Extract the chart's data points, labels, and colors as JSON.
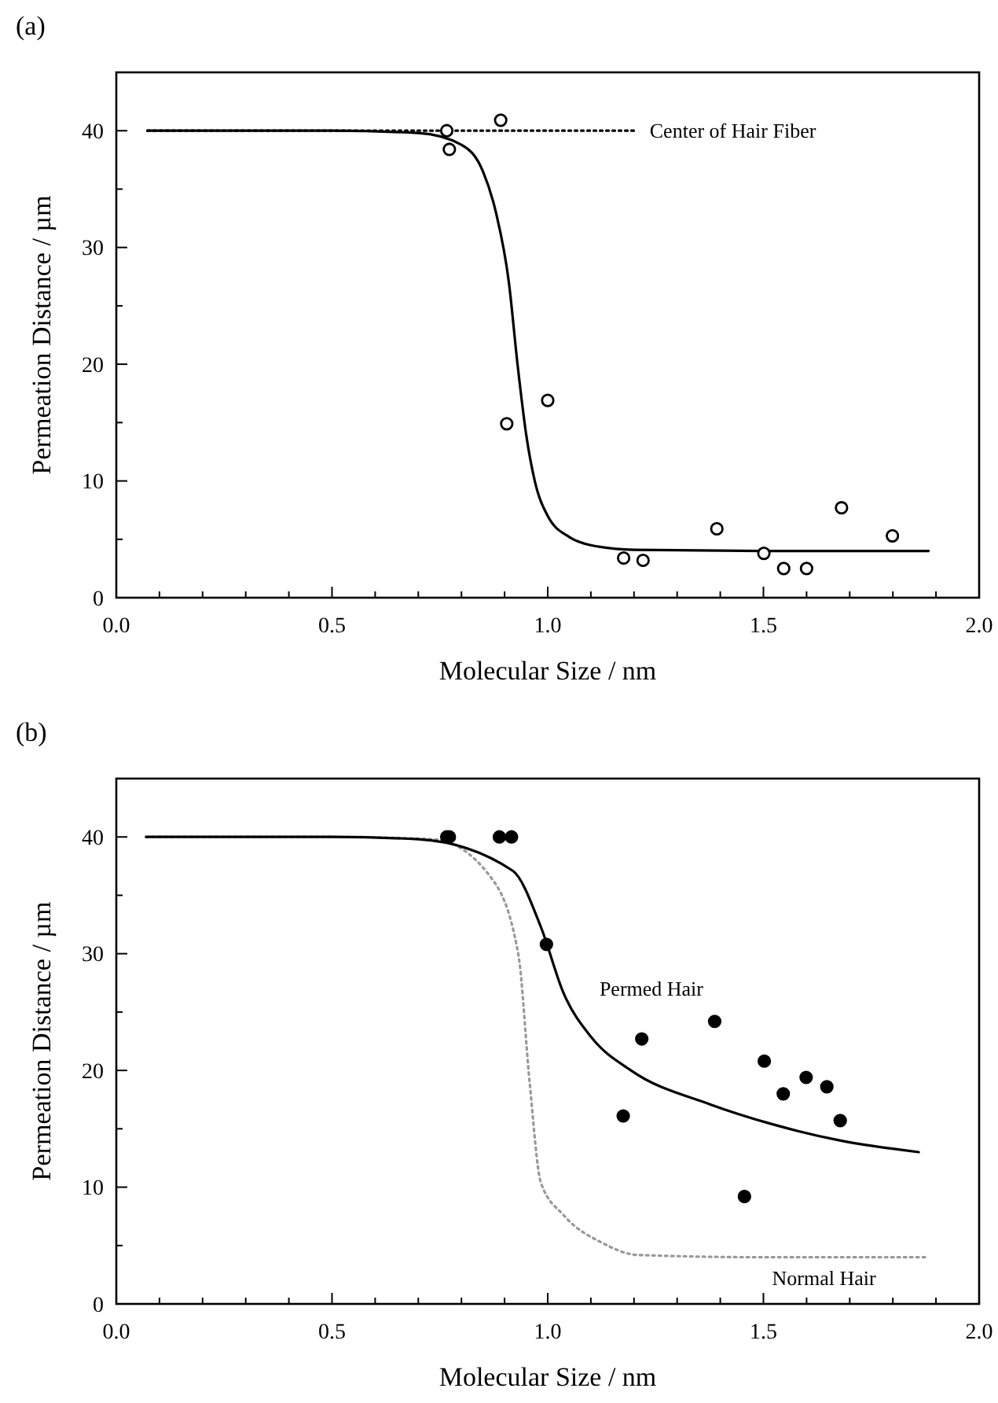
{
  "chart_data": [
    {
      "type": "scatter",
      "title": "(a)",
      "xlabel": "Molecular Size / nm",
      "ylabel": "Permeation Distance / µm",
      "xlim": [
        0,
        2
      ],
      "ylim": [
        0,
        45
      ],
      "xticks": [
        {
          "value": 0,
          "label": "0.0"
        },
        {
          "value": 0.1,
          "label": null
        },
        {
          "value": 0.2,
          "label": null
        },
        {
          "value": 0.3,
          "label": null
        },
        {
          "value": 0.4,
          "label": null
        },
        {
          "value": 0.5,
          "label": "0.5"
        },
        {
          "value": 0.6,
          "label": null
        },
        {
          "value": 0.7,
          "label": null
        },
        {
          "value": 0.8,
          "label": null
        },
        {
          "value": 0.9,
          "label": null
        },
        {
          "value": 1,
          "label": "1.0"
        },
        {
          "value": 1.1,
          "label": null
        },
        {
          "value": 1.2,
          "label": null
        },
        {
          "value": 1.3,
          "label": null
        },
        {
          "value": 1.4,
          "label": null
        },
        {
          "value": 1.5,
          "label": "1.5"
        },
        {
          "value": 1.6,
          "label": null
        },
        {
          "value": 1.7,
          "label": null
        },
        {
          "value": 1.8,
          "label": null
        },
        {
          "value": 1.9,
          "label": null
        },
        {
          "value": 2,
          "label": "2.0"
        }
      ],
      "yticks": [
        0,
        {
          "value": 5,
          "label": null
        },
        10,
        {
          "value": 15,
          "label": null
        },
        20,
        {
          "value": 25,
          "label": null
        },
        30,
        {
          "value": 35,
          "label": null
        },
        40
      ],
      "grid": false,
      "legend": false,
      "series": [
        {
          "type": "line",
          "name": "Center of Hair Fiber",
          "color": "#000000",
          "line_style": "dotted",
          "marker": "none",
          "x": [
            0.072,
            1.2
          ],
          "values": [
            40,
            40
          ]
        },
        {
          "type": "line",
          "color": "#000000",
          "line_style": "solid",
          "marker": "none",
          "x": [
            0.072,
            0.5,
            0.7,
            0.8,
            0.85,
            0.88,
            0.91,
            0.93,
            0.95,
            0.97,
            1.0,
            1.05,
            1.1,
            1.2,
            1.5,
            1.883
          ],
          "values": [
            40,
            40,
            39.8,
            38.8,
            36.5,
            33,
            27,
            20,
            14,
            10,
            7,
            5.2,
            4.5,
            4.1,
            4.0,
            4.0
          ]
        },
        {
          "type": "scatter",
          "color": "#000000",
          "marker": "circle",
          "x": [
            0.766,
            0.772,
            0.891,
            0.905,
            1.0,
            1.176,
            1.221,
            1.392,
            1.501,
            1.547,
            1.6,
            1.681,
            1.799
          ],
          "values": [
            40.0,
            38.4,
            40.9,
            14.9,
            16.9,
            3.4,
            3.2,
            5.9,
            3.8,
            2.5,
            2.5,
            7.7,
            5.3
          ]
        }
      ]
    },
    {
      "type": "scatter",
      "title": "(b)",
      "xlabel": "Molecular Size / nm",
      "ylabel": "Permeation Distance / µm",
      "xlim": [
        0,
        2
      ],
      "ylim": [
        0,
        45
      ],
      "xticks": [
        {
          "value": 0,
          "label": "0.0"
        },
        {
          "value": 0.1,
          "label": null
        },
        {
          "value": 0.2,
          "label": null
        },
        {
          "value": 0.3,
          "label": null
        },
        {
          "value": 0.4,
          "label": null
        },
        {
          "value": 0.5,
          "label": "0.5"
        },
        {
          "value": 0.6,
          "label": null
        },
        {
          "value": 0.7,
          "label": null
        },
        {
          "value": 0.8,
          "label": null
        },
        {
          "value": 0.9,
          "label": null
        },
        {
          "value": 1,
          "label": "1.0"
        },
        {
          "value": 1.1,
          "label": null
        },
        {
          "value": 1.2,
          "label": null
        },
        {
          "value": 1.3,
          "label": null
        },
        {
          "value": 1.4,
          "label": null
        },
        {
          "value": 1.5,
          "label": "1.5"
        },
        {
          "value": 1.6,
          "label": null
        },
        {
          "value": 1.7,
          "label": null
        },
        {
          "value": 1.8,
          "label": null
        },
        {
          "value": 1.9,
          "label": null
        },
        {
          "value": 2,
          "label": "2.0"
        }
      ],
      "yticks": [
        0,
        {
          "value": 5,
          "label": null
        },
        10,
        {
          "value": 15,
          "label": null
        },
        20,
        {
          "value": 25,
          "label": null
        },
        30,
        {
          "value": 35,
          "label": null
        },
        40
      ],
      "grid": false,
      "legend": false,
      "series": [
        {
          "type": "line",
          "name": "Normal Hair",
          "color": "#999999",
          "line_style": "dotted",
          "marker": "none",
          "x": [
            0.069,
            0.5,
            0.736,
            0.867,
            0.932,
            0.958,
            0.984,
            1.037,
            1.128,
            1.207,
            1.5,
            1.881
          ],
          "values": [
            40,
            40,
            39.8,
            36.6,
            29.9,
            19.0,
            10.4,
            7.6,
            5.2,
            4.2,
            4.0,
            4.0
          ]
        },
        {
          "type": "line",
          "name": "Permed Hair",
          "color": "#000000",
          "line_style": "solid",
          "marker": "none",
          "x": [
            0.069,
            0.5,
            0.7,
            0.919,
            0.984,
            1.037,
            1.102,
            1.193,
            1.376,
            1.52,
            1.677,
            1.86
          ],
          "values": [
            40,
            40,
            39.8,
            37.1,
            32.3,
            26.6,
            22.8,
            20.0,
            17.1,
            15.4,
            14.0,
            13.0
          ]
        },
        {
          "type": "scatter",
          "color": "#000000",
          "marker": "circle",
          "x": [
            0.766,
            0.772,
            0.888,
            0.916,
            0.997,
            1.175,
            1.218,
            1.387,
            1.456,
            1.502,
            1.546,
            1.599,
            1.647,
            1.678
          ],
          "values": [
            40,
            40,
            40,
            40,
            30.8,
            16.1,
            22.7,
            24.2,
            9.2,
            20.8,
            18.0,
            19.4,
            18.6,
            15.7
          ]
        }
      ]
    }
  ]
}
